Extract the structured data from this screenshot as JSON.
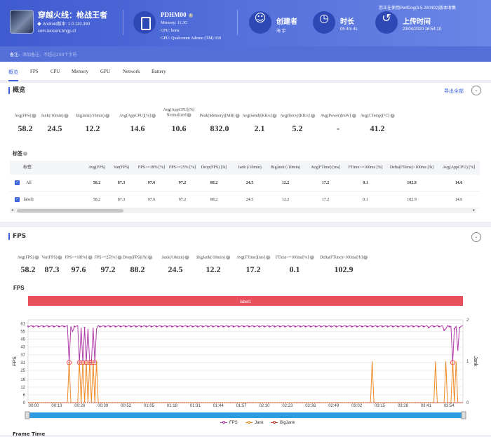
{
  "app": {
    "name": "穿越火线：枪战王者",
    "platform": "Android版本: 1.0.110.390",
    "package": "com.tencent.tmgp.cf",
    "version": "您正在使用PerfDog(3.5.200402)版本收集"
  },
  "device": {
    "name": "PDHM00",
    "memory": "Memory: 11.3G",
    "cpu": "CPU: kona",
    "gpu": "GPU: Qualcomm Adreno (TM) 650"
  },
  "info": [
    {
      "icon": "user-icon",
      "glyph": "☺",
      "label": "创建者",
      "value": "海 宇"
    },
    {
      "icon": "clock-icon",
      "glyph": "◷",
      "label": "时长",
      "value": "0h 4m 4s"
    },
    {
      "icon": "history-icon",
      "glyph": "↺",
      "label": "上传时间",
      "value": "23/04/2020 16:54:10"
    }
  ],
  "note": {
    "label": "备注:",
    "placeholder": "添加备注，不超过200个字符"
  },
  "tabs": [
    "概览",
    "FPS",
    "CPU",
    "Memory",
    "GPU",
    "Network",
    "Battery"
  ],
  "overview": {
    "title": "概览",
    "export": "导出全部",
    "metrics": [
      {
        "label": "Avg(FPS)",
        "value": "58.2"
      },
      {
        "label": "Jank(/10min)",
        "value": "24.5"
      },
      {
        "label": "BigJank(/10min)",
        "value": "12.2"
      },
      {
        "label": "Avg(AppCPU)[%]",
        "value": "14.6"
      },
      {
        "label": "Avg(AppCPU)[%]\nNormalized",
        "value": "10.6"
      },
      {
        "label": "Peak(Memory)[MB]",
        "value": "832.0"
      },
      {
        "label": "Avg(Send)[KB/s]",
        "value": "2.1"
      },
      {
        "label": "Avg(Recv)[KB/s]",
        "value": "5.2"
      },
      {
        "label": "Avg(Power)[mW]",
        "value": "-"
      },
      {
        "label": "Avg(CTemp)[°C]",
        "value": "41.2"
      }
    ]
  },
  "table": {
    "title": "标签",
    "headers": [
      "标签",
      "Avg(FPS)",
      "Var(FPS)",
      "FPS>=18% [%]",
      "FPS>=25% [%]",
      "Drop(FPS) [/h]",
      "Jank (/10min)",
      "BigJank (/10min)",
      "Avg(FTime) [ms]",
      "FTime>=100ms [%]",
      "Delta(FTime)>100ms [/h]",
      "Avg(AppCPU) [%]",
      "Ap"
    ],
    "rows": [
      [
        "All",
        "58.2",
        "87.3",
        "97.6",
        "97.2",
        "88.2",
        "24.5",
        "12.2",
        "17.2",
        "0.1",
        "102.9",
        "14.6"
      ],
      [
        "label1",
        "58.2",
        "87.3",
        "97.6",
        "97.2",
        "88.2",
        "24.5",
        "12.2",
        "17.2",
        "0.1",
        "102.9",
        "14.6"
      ]
    ]
  },
  "fps": {
    "title": "FPS",
    "metrics": [
      {
        "label": "Avg(FPS)",
        "value": "58.2"
      },
      {
        "label": "Var(FPS)",
        "value": "87.3"
      },
      {
        "label": "FPS>=18[%]",
        "value": "97.6"
      },
      {
        "label": "FPS>=25[%]",
        "value": "97.2"
      },
      {
        "label": "Drop(FPS)[/h]",
        "value": "88.2"
      },
      {
        "label": "Jank(/10min)",
        "value": "24.5"
      },
      {
        "label": "BigJank(/10min)",
        "value": "12.2"
      },
      {
        "label": "Avg(FTime)[ms]",
        "value": "17.2"
      },
      {
        "label": "FTime>=100ms[%]",
        "value": "0.1"
      },
      {
        "label": "Delta(FTime)>100ms[/h]",
        "value": "102.9"
      }
    ]
  },
  "chart_data": {
    "type": "line",
    "title": "FPS",
    "band_label": "label1",
    "ylabel": "FPS",
    "y2label": "Jank",
    "yticks": [
      "0",
      "6",
      "12",
      "18",
      "25",
      "31",
      "37",
      "43",
      "49",
      "55",
      "61"
    ],
    "y2ticks": [
      "0",
      "1",
      "2"
    ],
    "xticks": [
      "00:00",
      "00:13",
      "00:26",
      "00:39",
      "00:52",
      "01:05",
      "01:18",
      "01:31",
      "01:44",
      "01:57",
      "02:10",
      "02:23",
      "02:36",
      "02:49",
      "03:02",
      "03:15",
      "03:28",
      "03:41",
      "03:54"
    ],
    "ylim": [
      0,
      64
    ],
    "y2lim": [
      0,
      2
    ],
    "series": [
      {
        "name": "FPS",
        "color": "#b03aa8"
      },
      {
        "name": "Jank",
        "color": "#f08a24"
      },
      {
        "name": "BigJank",
        "color": "#c0392b"
      }
    ],
    "fps_baseline": 59,
    "fps_dips": [
      [
        24,
        31
      ],
      [
        26,
        55
      ],
      [
        30,
        31
      ],
      [
        31,
        58
      ],
      [
        32,
        31
      ],
      [
        33,
        58
      ],
      [
        34,
        31
      ],
      [
        35,
        57
      ],
      [
        36,
        31
      ],
      [
        37,
        31
      ],
      [
        38,
        58
      ],
      [
        39,
        31
      ],
      [
        40,
        57
      ],
      [
        234,
        58
      ],
      [
        243,
        56
      ],
      [
        244,
        57
      ],
      [
        248,
        31
      ],
      [
        249,
        57
      ],
      [
        251,
        40
      ],
      [
        252,
        58
      ]
    ],
    "jank_spikes": [
      24,
      30,
      32,
      34,
      36,
      38,
      40,
      201,
      238,
      244,
      248,
      250
    ],
    "legend_position": "bottom"
  },
  "footer_partial": "Frame Time"
}
